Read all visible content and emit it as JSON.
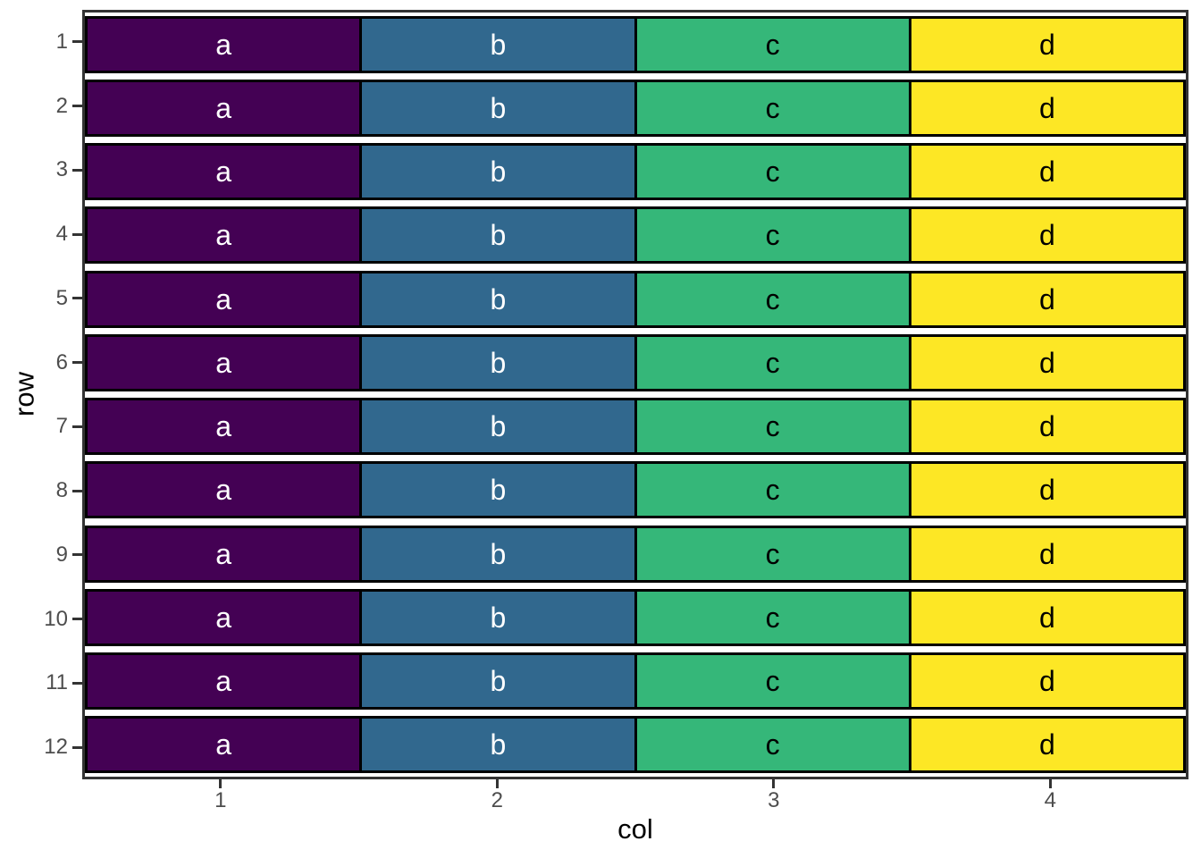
{
  "chart_data": {
    "type": "heatmap",
    "title": "",
    "xlabel": "col",
    "ylabel": "row",
    "x_ticks": [
      "1",
      "2",
      "3",
      "4"
    ],
    "y_ticks": [
      "1",
      "2",
      "3",
      "4",
      "5",
      "6",
      "7",
      "8",
      "9",
      "10",
      "11",
      "12"
    ],
    "x_range": [
      0.5,
      4.5
    ],
    "y_range": [
      0.5,
      12.5
    ],
    "grid": "off",
    "legend": "none",
    "columns": [
      {
        "x": 1,
        "label": "a",
        "fill": "#440154",
        "text_color": "#ffffff"
      },
      {
        "x": 2,
        "label": "b",
        "fill": "#31688e",
        "text_color": "#ffffff"
      },
      {
        "x": 3,
        "label": "c",
        "fill": "#35b779",
        "text_color": "#000000"
      },
      {
        "x": 4,
        "label": "d",
        "fill": "#fde725",
        "text_color": "#000000"
      }
    ],
    "cells": [
      [
        "a",
        "b",
        "c",
        "d"
      ],
      [
        "a",
        "b",
        "c",
        "d"
      ],
      [
        "a",
        "b",
        "c",
        "d"
      ],
      [
        "a",
        "b",
        "c",
        "d"
      ],
      [
        "a",
        "b",
        "c",
        "d"
      ],
      [
        "a",
        "b",
        "c",
        "d"
      ],
      [
        "a",
        "b",
        "c",
        "d"
      ],
      [
        "a",
        "b",
        "c",
        "d"
      ],
      [
        "a",
        "b",
        "c",
        "d"
      ],
      [
        "a",
        "b",
        "c",
        "d"
      ],
      [
        "a",
        "b",
        "c",
        "d"
      ],
      [
        "a",
        "b",
        "c",
        "d"
      ]
    ],
    "colors": {
      "background": "#ffffff",
      "panel_border": "#333333",
      "tile_border": "#000000",
      "tick_mark": "#333333",
      "tick_label": "#4d4d4d",
      "axis_title": "#000000"
    }
  }
}
